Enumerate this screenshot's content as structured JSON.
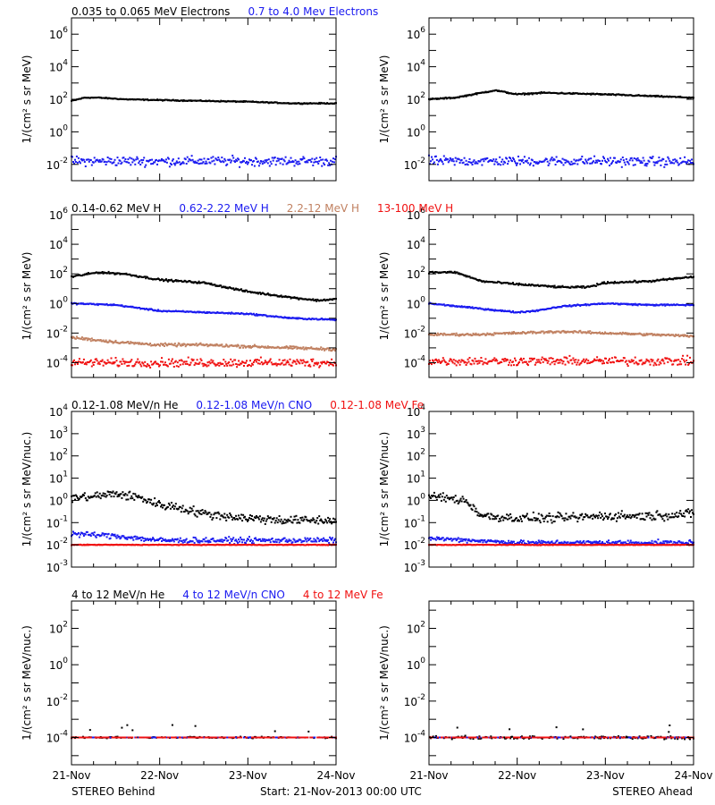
{
  "colors": {
    "black": "#000000",
    "blue": "#1a1af0",
    "tan": "#c08060",
    "red": "#f01010",
    "gray": "#a0a0a0"
  },
  "footer": {
    "left": "STEREO Behind",
    "center": "Start: 21-Nov-2013 00:00 UTC",
    "right": "STEREO Ahead"
  },
  "x_ticks": [
    "21-Nov",
    "22-Nov",
    "23-Nov",
    "24-Nov"
  ],
  "rows": [
    {
      "legend": [
        {
          "text": "0.035 to 0.065 MeV Electrons",
          "color": "black"
        },
        {
          "text": "0.7 to 4.0 Mev Electrons",
          "color": "blue"
        }
      ],
      "ylabel": "1/(cm² s sr MeV)",
      "y_ticks": [
        {
          "b": "10",
          "e": "-2",
          "v": -2
        },
        {
          "b": "10",
          "e": "0",
          "v": 0
        },
        {
          "b": "10",
          "e": "2",
          "v": 2
        },
        {
          "b": "10",
          "e": "4",
          "v": 4
        },
        {
          "b": "10",
          "e": "6",
          "v": 6
        }
      ]
    },
    {
      "legend": [
        {
          "text": "0.14-0.62 MeV H",
          "color": "black"
        },
        {
          "text": "0.62-2.22 MeV H",
          "color": "blue"
        },
        {
          "text": "2.2-12 MeV H",
          "color": "tan"
        },
        {
          "text": "13-100 MeV H",
          "color": "red"
        }
      ],
      "ylabel": "1/(cm² s sr MeV)",
      "y_ticks": [
        {
          "b": "10",
          "e": "-4",
          "v": -4
        },
        {
          "b": "10",
          "e": "-2",
          "v": -2
        },
        {
          "b": "10",
          "e": "0",
          "v": 0
        },
        {
          "b": "10",
          "e": "2",
          "v": 2
        },
        {
          "b": "10",
          "e": "4",
          "v": 4
        },
        {
          "b": "10",
          "e": "6",
          "v": 6
        }
      ]
    },
    {
      "legend": [
        {
          "text": "0.12-1.08 MeV/n He",
          "color": "black"
        },
        {
          "text": "0.12-1.08 MeV/n CNO",
          "color": "blue"
        },
        {
          "text": "0.12-1.08 MeV Fe",
          "color": "red"
        }
      ],
      "ylabel": "1/(cm² s sr MeV/nuc.)",
      "y_ticks": [
        {
          "b": "10",
          "e": "-3",
          "v": -3
        },
        {
          "b": "10",
          "e": "-2",
          "v": -2
        },
        {
          "b": "10",
          "e": "-1",
          "v": -1
        },
        {
          "b": "10",
          "e": "0",
          "v": 0
        },
        {
          "b": "10",
          "e": "1",
          "v": 1
        },
        {
          "b": "10",
          "e": "2",
          "v": 2
        },
        {
          "b": "10",
          "e": "3",
          "v": 3
        },
        {
          "b": "10",
          "e": "4",
          "v": 4
        }
      ]
    },
    {
      "legend": [
        {
          "text": "4 to 12 MeV/n He",
          "color": "black"
        },
        {
          "text": "4 to 12 MeV/n CNO",
          "color": "blue"
        },
        {
          "text": "4 to 12 MeV Fe",
          "color": "red"
        }
      ],
      "ylabel": "1/(cm² s sr MeV/nuc.)",
      "y_ticks": [
        {
          "b": "10",
          "e": "-4",
          "v": -4
        },
        {
          "b": "10",
          "e": "-2",
          "v": -2
        },
        {
          "b": "10",
          "e": "0",
          "v": 0
        },
        {
          "b": "10",
          "e": "2",
          "v": 2
        }
      ]
    }
  ],
  "chart_data": [
    {
      "type": "scatter",
      "spacecraft": "STEREO Behind",
      "row": 0,
      "x_unit": "days since 21-Nov-2013 00:00 UTC",
      "xlim": [
        0,
        3
      ],
      "ylim_log10": [
        -3,
        7
      ],
      "yscale": "log",
      "series": [
        {
          "name": "0.035 to 0.065 MeV Electrons",
          "color": "black",
          "x": [
            0,
            0.15,
            0.3,
            0.6,
            1,
            1.5,
            2,
            2.5,
            3
          ],
          "log10y": [
            1.9,
            2.1,
            2.1,
            2.0,
            1.95,
            1.9,
            1.85,
            1.75,
            1.75
          ],
          "scatter": 0.04
        },
        {
          "name": "0.7 to 4.0 Mev Electrons",
          "color": "blue",
          "x": [
            0,
            1,
            2,
            3
          ],
          "log10y": [
            -1.8,
            -1.8,
            -1.8,
            -1.8
          ],
          "scatter": 0.35
        }
      ]
    },
    {
      "type": "scatter",
      "spacecraft": "STEREO Ahead",
      "row": 0,
      "x_unit": "days since 21-Nov-2013 00:00 UTC",
      "xlim": [
        0,
        3
      ],
      "ylim_log10": [
        -3,
        7
      ],
      "yscale": "log",
      "series": [
        {
          "name": "0.035 to 0.065 MeV Electrons",
          "color": "black",
          "x": [
            0,
            0.3,
            0.6,
            0.75,
            1,
            1.3,
            2,
            2.5,
            3
          ],
          "log10y": [
            2.0,
            2.1,
            2.4,
            2.55,
            2.3,
            2.4,
            2.3,
            2.2,
            2.1
          ],
          "scatter": 0.05
        },
        {
          "name": "0.7 to 4.0 Mev Electrons",
          "color": "blue",
          "x": [
            0,
            1,
            2,
            3
          ],
          "log10y": [
            -1.8,
            -1.8,
            -1.8,
            -1.85
          ],
          "scatter": 0.35
        }
      ]
    },
    {
      "type": "scatter",
      "spacecraft": "STEREO Behind",
      "row": 1,
      "x_unit": "days since 21-Nov-2013 00:00 UTC",
      "xlim": [
        0,
        3
      ],
      "ylim_log10": [
        -5,
        6
      ],
      "yscale": "log",
      "series": [
        {
          "name": "0.14-0.62 MeV H",
          "color": "black",
          "x": [
            0,
            0.3,
            0.6,
            1,
            1.5,
            2,
            2.5,
            2.8,
            3
          ],
          "log10y": [
            1.8,
            2.1,
            2.0,
            1.6,
            1.4,
            0.8,
            0.4,
            0.2,
            0.3
          ],
          "scatter": 0.08
        },
        {
          "name": "0.62-2.22 MeV H",
          "color": "blue",
          "x": [
            0,
            0.5,
            1,
            1.5,
            2,
            2.5,
            3
          ],
          "log10y": [
            0.0,
            -0.1,
            -0.5,
            -0.6,
            -0.7,
            -1.0,
            -1.1
          ],
          "scatter": 0.06
        },
        {
          "name": "2.2-12 MeV H",
          "color": "tan",
          "x": [
            0,
            0.5,
            1,
            1.5,
            2,
            2.5,
            3
          ],
          "log10y": [
            -2.3,
            -2.6,
            -2.8,
            -2.8,
            -2.9,
            -3.0,
            -3.1
          ],
          "scatter": 0.12
        },
        {
          "name": "13-100 MeV H",
          "color": "red",
          "x": [
            0,
            1,
            2,
            3
          ],
          "log10y": [
            -4.0,
            -4.0,
            -4.0,
            -4.0
          ],
          "scatter": 0.35
        }
      ]
    },
    {
      "type": "scatter",
      "spacecraft": "STEREO Ahead",
      "row": 1,
      "x_unit": "days since 21-Nov-2013 00:00 UTC",
      "xlim": [
        0,
        3
      ],
      "ylim_log10": [
        -5,
        6
      ],
      "yscale": "log",
      "series": [
        {
          "name": "0.14-0.62 MeV H",
          "color": "black",
          "x": [
            0,
            0.3,
            0.6,
            1,
            1.5,
            1.8,
            2,
            2.5,
            3
          ],
          "log10y": [
            2.1,
            2.1,
            1.5,
            1.3,
            1.1,
            1.1,
            1.4,
            1.5,
            1.8
          ],
          "scatter": 0.08
        },
        {
          "name": "0.62-2.22 MeV H",
          "color": "blue",
          "x": [
            0,
            0.5,
            1,
            1.2,
            1.5,
            2,
            2.5,
            3
          ],
          "log10y": [
            0.0,
            -0.3,
            -0.6,
            -0.5,
            -0.2,
            0.0,
            -0.1,
            -0.1
          ],
          "scatter": 0.06
        },
        {
          "name": "2.2-12 MeV H",
          "color": "tan",
          "x": [
            0,
            0.5,
            1,
            1.5,
            2,
            2.5,
            3
          ],
          "log10y": [
            -2.1,
            -2.1,
            -2.0,
            -1.9,
            -2.0,
            -2.1,
            -2.2
          ],
          "scatter": 0.1
        },
        {
          "name": "13-100 MeV H",
          "color": "red",
          "x": [
            0,
            1,
            2,
            3
          ],
          "log10y": [
            -3.9,
            -3.9,
            -3.9,
            -3.9
          ],
          "scatter": 0.35
        }
      ]
    },
    {
      "type": "scatter",
      "spacecraft": "STEREO Behind",
      "row": 2,
      "x_unit": "days since 21-Nov-2013 00:00 UTC",
      "xlim": [
        0,
        3
      ],
      "ylim_log10": [
        -3,
        4
      ],
      "yscale": "log",
      "series": [
        {
          "name": "0.12-1.08 MeV/n He",
          "color": "black",
          "x": [
            0,
            0.3,
            0.5,
            0.8,
            1,
            1.2,
            1.5,
            2,
            2.5,
            3
          ],
          "log10y": [
            0.1,
            0.2,
            0.3,
            0.1,
            -0.2,
            -0.3,
            -0.6,
            -0.8,
            -0.9,
            -0.9
          ],
          "scatter": 0.25
        },
        {
          "name": "0.12-1.08 MeV/n CNO",
          "color": "blue",
          "x": [
            0,
            0.5,
            1,
            2,
            3
          ],
          "log10y": [
            -1.5,
            -1.6,
            -1.8,
            -1.8,
            -1.8
          ],
          "scatter": 0.15
        },
        {
          "name": "0.12-1.08 MeV Fe",
          "color": "red",
          "x": [
            0,
            1,
            2,
            3
          ],
          "log10y": [
            -2.0,
            -2.0,
            -2.0,
            -2.0
          ],
          "scatter": 0.02
        }
      ]
    },
    {
      "type": "scatter",
      "spacecraft": "STEREO Ahead",
      "row": 2,
      "x_unit": "days since 21-Nov-2013 00:00 UTC",
      "xlim": [
        0,
        3
      ],
      "ylim_log10": [
        -3,
        4
      ],
      "yscale": "log",
      "series": [
        {
          "name": "0.12-1.08 MeV/n He",
          "color": "black",
          "x": [
            0,
            0.2,
            0.4,
            0.5,
            0.6,
            1,
            1.5,
            2,
            2.5,
            3
          ],
          "log10y": [
            0.2,
            0.1,
            0.0,
            -0.3,
            -0.7,
            -0.8,
            -0.8,
            -0.7,
            -0.7,
            -0.6
          ],
          "scatter": 0.25
        },
        {
          "name": "0.12-1.08 MeV/n CNO",
          "color": "blue",
          "x": [
            0,
            1,
            2,
            3
          ],
          "log10y": [
            -1.7,
            -1.9,
            -1.9,
            -1.9
          ],
          "scatter": 0.12
        },
        {
          "name": "0.12-1.08 MeV Fe",
          "color": "red",
          "x": [
            0,
            1,
            2,
            3
          ],
          "log10y": [
            -2.0,
            -2.0,
            -2.0,
            -2.0
          ],
          "scatter": 0.02
        }
      ]
    },
    {
      "type": "scatter",
      "spacecraft": "STEREO Behind",
      "row": 3,
      "x_unit": "days since 21-Nov-2013 00:00 UTC",
      "xlim": [
        0,
        3
      ],
      "ylim_log10": [
        -5.5,
        3.5
      ],
      "yscale": "log",
      "series": [
        {
          "name": "4 to 12 MeV/n He",
          "color": "black",
          "x": [
            0,
            3
          ],
          "log10y": [
            -4,
            -4
          ],
          "scatter": 0.05
        },
        {
          "name": "4 to 12 MeV/n CNO",
          "color": "blue",
          "x": [
            0,
            3
          ],
          "log10y": [
            -4,
            -4
          ],
          "scatter": 0.0
        },
        {
          "name": "4 to 12 MeV Fe",
          "color": "red",
          "x": [
            0,
            3
          ],
          "log10y": [
            -4,
            -4
          ],
          "scatter": 0.0
        }
      ]
    },
    {
      "type": "scatter",
      "spacecraft": "STEREO Ahead",
      "row": 3,
      "x_unit": "days since 21-Nov-2013 00:00 UTC",
      "xlim": [
        0,
        3
      ],
      "ylim_log10": [
        -5.5,
        3.5
      ],
      "yscale": "log",
      "series": [
        {
          "name": "4 to 12 MeV/n He",
          "color": "black",
          "x": [
            0,
            3
          ],
          "log10y": [
            -4,
            -4
          ],
          "scatter": 0.1
        },
        {
          "name": "4 to 12 MeV/n CNO",
          "color": "blue",
          "x": [
            0,
            3
          ],
          "log10y": [
            -4,
            -4
          ],
          "scatter": 0.0
        },
        {
          "name": "4 to 12 MeV Fe",
          "color": "red",
          "x": [
            0,
            3
          ],
          "log10y": [
            -4,
            -4
          ],
          "scatter": 0.0
        }
      ]
    }
  ]
}
